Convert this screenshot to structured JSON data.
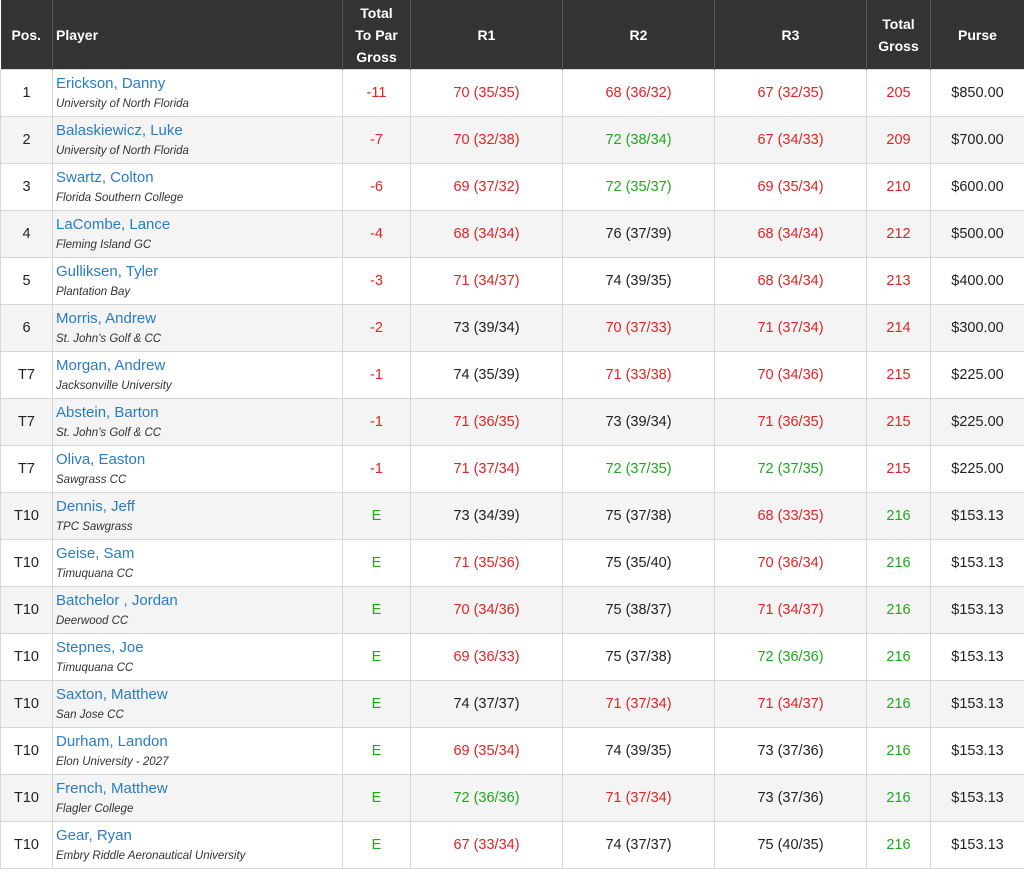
{
  "colors": {
    "under_par": "#e02424",
    "even_par": "#1ea81e",
    "link": "#2a7cc2",
    "header_bg": "#333333"
  },
  "headers": {
    "pos": "Pos.",
    "player": "Player",
    "topar": [
      "Total",
      "To Par",
      "Gross"
    ],
    "r1": "R1",
    "r2": "R2",
    "r3": "R3",
    "total": [
      "Total",
      "Gross"
    ],
    "purse": "Purse"
  },
  "rows": [
    {
      "pos": "1",
      "name": "Erickson, Danny",
      "club": "University of North Florida",
      "topar": "-11",
      "topar_c": "red",
      "r1": "70 (35/35)",
      "r1_c": "red",
      "r2": "68 (36/32)",
      "r2_c": "red",
      "r3": "67 (32/35)",
      "r3_c": "red",
      "total": "205",
      "total_c": "red",
      "purse": "$850.00"
    },
    {
      "pos": "2",
      "name": "Balaskiewicz, Luke",
      "club": "University of North Florida",
      "topar": "-7",
      "topar_c": "red",
      "r1": "70 (32/38)",
      "r1_c": "red",
      "r2": "72 (38/34)",
      "r2_c": "green",
      "r3": "67 (34/33)",
      "r3_c": "red",
      "total": "209",
      "total_c": "red",
      "purse": "$700.00"
    },
    {
      "pos": "3",
      "name": "Swartz, Colton",
      "club": "Florida Southern College",
      "topar": "-6",
      "topar_c": "red",
      "r1": "69 (37/32)",
      "r1_c": "red",
      "r2": "72 (35/37)",
      "r2_c": "green",
      "r3": "69 (35/34)",
      "r3_c": "red",
      "total": "210",
      "total_c": "red",
      "purse": "$600.00"
    },
    {
      "pos": "4",
      "name": "LaCombe, Lance",
      "club": "Fleming Island GC",
      "topar": "-4",
      "topar_c": "red",
      "r1": "68 (34/34)",
      "r1_c": "red",
      "r2": "76 (37/39)",
      "r2_c": "black",
      "r3": "68 (34/34)",
      "r3_c": "red",
      "total": "212",
      "total_c": "red",
      "purse": "$500.00"
    },
    {
      "pos": "5",
      "name": "Gulliksen, Tyler",
      "club": "Plantation Bay",
      "topar": "-3",
      "topar_c": "red",
      "r1": "71 (34/37)",
      "r1_c": "red",
      "r2": "74 (39/35)",
      "r2_c": "black",
      "r3": "68 (34/34)",
      "r3_c": "red",
      "total": "213",
      "total_c": "red",
      "purse": "$400.00"
    },
    {
      "pos": "6",
      "name": "Morris, Andrew",
      "club": "St. John's Golf & CC",
      "topar": "-2",
      "topar_c": "red",
      "r1": "73 (39/34)",
      "r1_c": "black",
      "r2": "70 (37/33)",
      "r2_c": "red",
      "r3": "71 (37/34)",
      "r3_c": "red",
      "total": "214",
      "total_c": "red",
      "purse": "$300.00"
    },
    {
      "pos": "T7",
      "name": "Morgan, Andrew",
      "club": "Jacksonville University",
      "topar": "-1",
      "topar_c": "red",
      "r1": "74 (35/39)",
      "r1_c": "black",
      "r2": "71 (33/38)",
      "r2_c": "red",
      "r3": "70 (34/36)",
      "r3_c": "red",
      "total": "215",
      "total_c": "red",
      "purse": "$225.00"
    },
    {
      "pos": "T7",
      "name": "Abstein, Barton",
      "club": "St. John's Golf & CC",
      "topar": "-1",
      "topar_c": "red",
      "r1": "71 (36/35)",
      "r1_c": "red",
      "r2": "73 (39/34)",
      "r2_c": "black",
      "r3": "71 (36/35)",
      "r3_c": "red",
      "total": "215",
      "total_c": "red",
      "purse": "$225.00"
    },
    {
      "pos": "T7",
      "name": "Oliva, Easton",
      "club": "Sawgrass CC",
      "topar": "-1",
      "topar_c": "red",
      "r1": "71 (37/34)",
      "r1_c": "red",
      "r2": "72 (37/35)",
      "r2_c": "green",
      "r3": "72 (37/35)",
      "r3_c": "green",
      "total": "215",
      "total_c": "red",
      "purse": "$225.00"
    },
    {
      "pos": "T10",
      "name": "Dennis, Jeff",
      "club": "TPC Sawgrass",
      "topar": "E",
      "topar_c": "green",
      "r1": "73 (34/39)",
      "r1_c": "black",
      "r2": "75 (37/38)",
      "r2_c": "black",
      "r3": "68 (33/35)",
      "r3_c": "red",
      "total": "216",
      "total_c": "green",
      "purse": "$153.13"
    },
    {
      "pos": "T10",
      "name": "Geise, Sam",
      "club": "Timuquana CC",
      "topar": "E",
      "topar_c": "green",
      "r1": "71 (35/36)",
      "r1_c": "red",
      "r2": "75 (35/40)",
      "r2_c": "black",
      "r3": "70 (36/34)",
      "r3_c": "red",
      "total": "216",
      "total_c": "green",
      "purse": "$153.13"
    },
    {
      "pos": "T10",
      "name": "Batchelor , Jordan",
      "club": "Deerwood CC",
      "topar": "E",
      "topar_c": "green",
      "r1": "70 (34/36)",
      "r1_c": "red",
      "r2": "75 (38/37)",
      "r2_c": "black",
      "r3": "71 (34/37)",
      "r3_c": "red",
      "total": "216",
      "total_c": "green",
      "purse": "$153.13"
    },
    {
      "pos": "T10",
      "name": "Stepnes, Joe",
      "club": "Timuquana CC",
      "topar": "E",
      "topar_c": "green",
      "r1": "69 (36/33)",
      "r1_c": "red",
      "r2": "75 (37/38)",
      "r2_c": "black",
      "r3": "72 (36/36)",
      "r3_c": "green",
      "total": "216",
      "total_c": "green",
      "purse": "$153.13"
    },
    {
      "pos": "T10",
      "name": "Saxton, Matthew",
      "club": "San Jose CC",
      "topar": "E",
      "topar_c": "green",
      "r1": "74 (37/37)",
      "r1_c": "black",
      "r2": "71 (37/34)",
      "r2_c": "red",
      "r3": "71 (34/37)",
      "r3_c": "red",
      "total": "216",
      "total_c": "green",
      "purse": "$153.13"
    },
    {
      "pos": "T10",
      "name": "Durham, Landon",
      "club": "Elon University - 2027",
      "topar": "E",
      "topar_c": "green",
      "r1": "69 (35/34)",
      "r1_c": "red",
      "r2": "74 (39/35)",
      "r2_c": "black",
      "r3": "73 (37/36)",
      "r3_c": "black",
      "total": "216",
      "total_c": "green",
      "purse": "$153.13"
    },
    {
      "pos": "T10",
      "name": "French, Matthew",
      "club": "Flagler College",
      "topar": "E",
      "topar_c": "green",
      "r1": "72 (36/36)",
      "r1_c": "green",
      "r2": "71 (37/34)",
      "r2_c": "red",
      "r3": "73 (37/36)",
      "r3_c": "black",
      "total": "216",
      "total_c": "green",
      "purse": "$153.13"
    },
    {
      "pos": "T10",
      "name": "Gear, Ryan",
      "club": "Embry Riddle Aeronautical University",
      "topar": "E",
      "topar_c": "green",
      "r1": "67 (33/34)",
      "r1_c": "red",
      "r2": "74 (37/37)",
      "r2_c": "black",
      "r3": "75 (40/35)",
      "r3_c": "black",
      "total": "216",
      "total_c": "green",
      "purse": "$153.13"
    }
  ]
}
